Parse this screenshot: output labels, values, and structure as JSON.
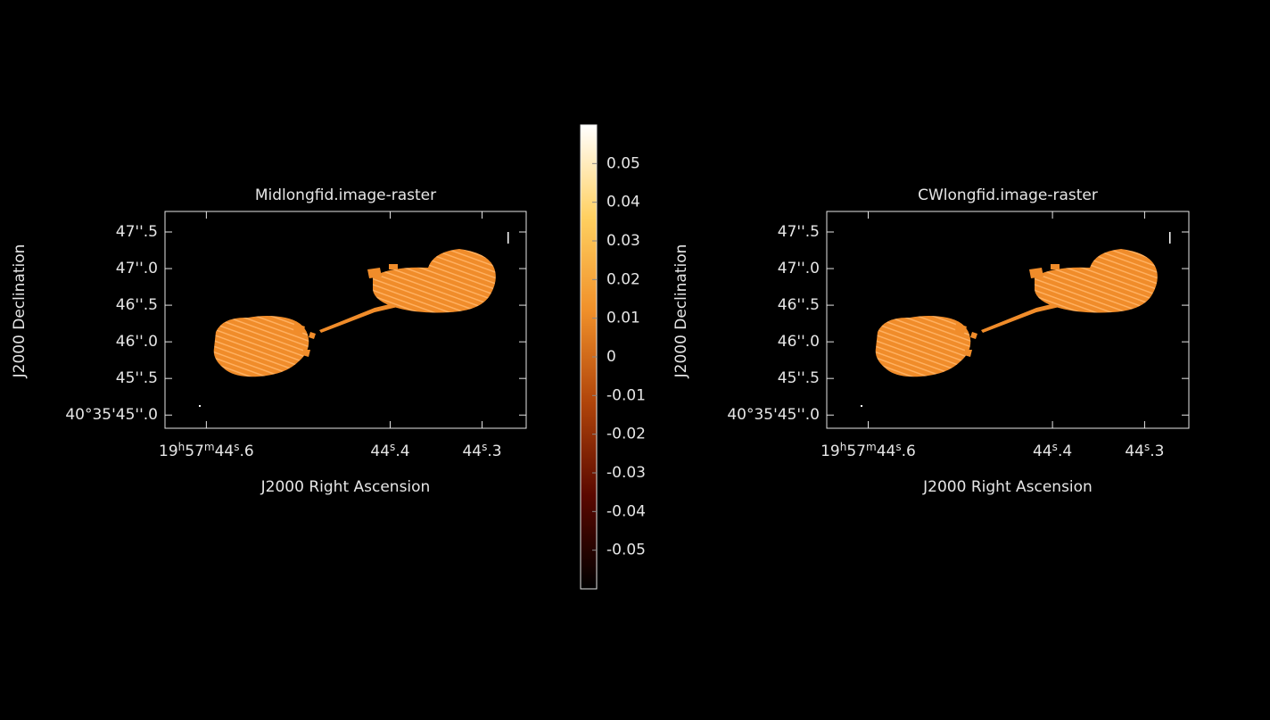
{
  "chart_data": [
    {
      "type": "raster",
      "title": "Midlongfid.image-raster",
      "xlabel": "J2000 Right Ascension",
      "ylabel": "J2000 Declination",
      "xlim": [
        44.645,
        44.252
      ],
      "ylim": [
        44.82,
        47.78
      ],
      "xticks": [
        {
          "value": 44.6,
          "label": "19h57m44s.6"
        },
        {
          "value": 44.4,
          "label": "44s.4"
        },
        {
          "value": 44.3,
          "label": "44s.3"
        }
      ],
      "yticks": [
        {
          "value": 45.0,
          "label": "40°35'45''.0"
        },
        {
          "value": 45.5,
          "label": "45''.5"
        },
        {
          "value": 46.0,
          "label": "46''.0"
        },
        {
          "value": 46.5,
          "label": "46''.5"
        },
        {
          "value": 47.0,
          "label": "47''.0"
        },
        {
          "value": 47.5,
          "label": "47''.5"
        }
      ]
    },
    {
      "type": "raster",
      "title": "CWlongfid.image-raster",
      "xlabel": "J2000 Right Ascension",
      "ylabel": "J2000 Declination",
      "xlim": [
        44.645,
        44.252
      ],
      "ylim": [
        44.82,
        47.78
      ],
      "xticks": [
        {
          "value": 44.6,
          "label": "19h57m44s.6"
        },
        {
          "value": 44.4,
          "label": "44s.4"
        },
        {
          "value": 44.3,
          "label": "44s.3"
        }
      ],
      "yticks": [
        {
          "value": 45.0,
          "label": "40°35'45''.0"
        },
        {
          "value": 45.5,
          "label": "45''.5"
        },
        {
          "value": 46.0,
          "label": "46''.0"
        },
        {
          "value": 46.5,
          "label": "46''.5"
        },
        {
          "value": 47.0,
          "label": "47''.0"
        },
        {
          "value": 47.5,
          "label": "47''.5"
        }
      ]
    },
    {
      "type": "colorbar",
      "ylim": [
        -0.06,
        0.06
      ],
      "colors": [
        "#000000",
        "#5a0800",
        "#b0440a",
        "#f0902a",
        "#ffd060",
        "#ffffff"
      ],
      "yticks": [
        0.05,
        0.04,
        0.03,
        0.02,
        0.01,
        0,
        -0.01,
        -0.02,
        -0.03,
        -0.04,
        -0.05
      ]
    }
  ]
}
